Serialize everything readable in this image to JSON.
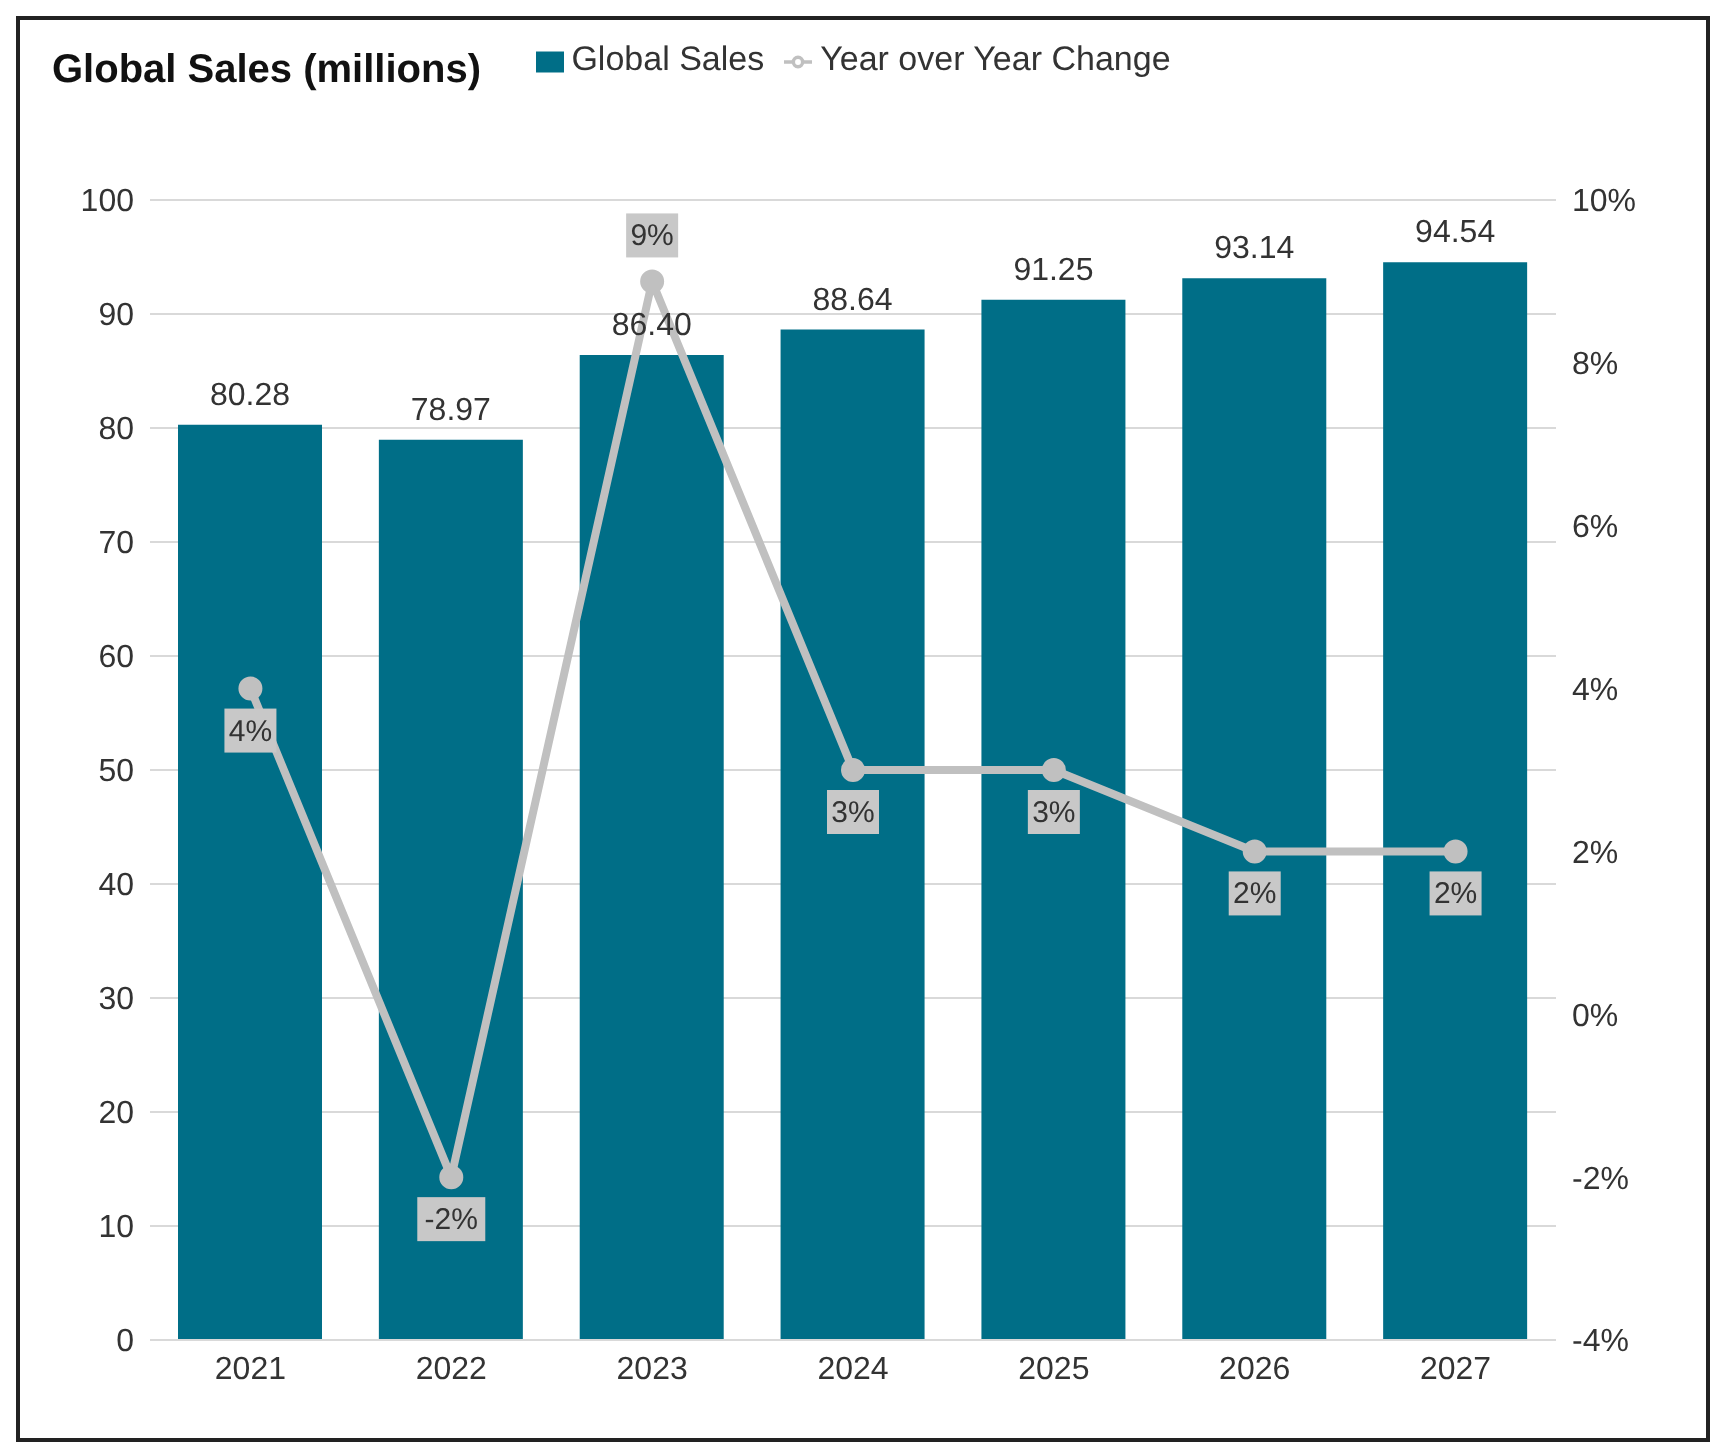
{
  "chart_data": {
    "type": "bar",
    "title": "Global Sales (millions)",
    "categories": [
      "2021",
      "2022",
      "2023",
      "2024",
      "2025",
      "2026",
      "2027"
    ],
    "series": [
      {
        "name": "Global Sales",
        "color": "#006e87",
        "values": [
          80.28,
          78.97,
          86.4,
          88.64,
          91.25,
          93.14,
          94.54
        ],
        "value_labels": [
          "80.28",
          "78.97",
          "86.40",
          "88.64",
          "91.25",
          "93.14",
          "94.54"
        ]
      },
      {
        "name": "Year over Year Change",
        "type": "line",
        "axis": "y2",
        "color": "#c0c0c0",
        "values": [
          4,
          -2,
          9,
          3,
          3,
          2,
          2
        ],
        "value_labels": [
          "4%",
          "-2%",
          "9%",
          "3%",
          "3%",
          "2%",
          "2%"
        ]
      }
    ],
    "ylim": [
      0,
      100
    ],
    "yticks": [
      0,
      10,
      20,
      30,
      40,
      50,
      60,
      70,
      80,
      90,
      100
    ],
    "y2lim": [
      -4,
      10
    ],
    "y2ticks": [
      {
        "value": -4,
        "label": "-4%"
      },
      {
        "value": -2,
        "label": "-2%"
      },
      {
        "value": 0,
        "label": "0%"
      },
      {
        "value": 2,
        "label": "2%"
      },
      {
        "value": 4,
        "label": "4%"
      },
      {
        "value": 6,
        "label": "6%"
      },
      {
        "value": 8,
        "label": "8%"
      },
      {
        "value": 10,
        "label": "10%"
      }
    ],
    "grid": "y",
    "legend": "top",
    "marker": "circle"
  }
}
